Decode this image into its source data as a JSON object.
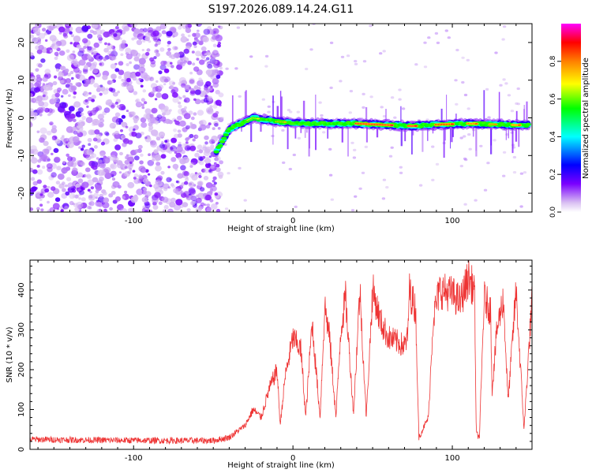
{
  "title": "S197.2026.089.14.24.G11",
  "colors": {
    "snr_line": "#ee3333",
    "frame": "#000000",
    "background": "#ffffff"
  },
  "chart_data": [
    {
      "type": "heatmap",
      "name": "spectrogram",
      "xlabel": "Height of straight line (km)",
      "ylabel": "Frequency (Hz)",
      "xlim": [
        -165,
        150
      ],
      "ylim": [
        -25,
        25
      ],
      "xticks": [
        -100,
        0,
        100
      ],
      "yticks": [
        -20,
        -10,
        0,
        10,
        20
      ],
      "colorbar": {
        "label": "Normalized spectral amplitude",
        "range": [
          0.0,
          1.0
        ],
        "ticks": [
          "0.0",
          "0.2",
          "0.4",
          "0.6",
          "0.8"
        ]
      },
      "ridge": {
        "description_points": [
          {
            "x": -48,
            "y": -9
          },
          {
            "x": -40,
            "y": -3
          },
          {
            "x": -25,
            "y": 0
          },
          {
            "x": -10,
            "y": -1
          },
          {
            "x": 10,
            "y": -1.5
          },
          {
            "x": 40,
            "y": -1.5
          },
          {
            "x": 75,
            "y": -2.2
          },
          {
            "x": 90,
            "y": -1.8
          },
          {
            "x": 110,
            "y": -1.5
          },
          {
            "x": 148,
            "y": -2
          }
        ],
        "peak_amplitude": 0.95
      }
    },
    {
      "type": "line",
      "name": "snr",
      "xlabel": "Height of straight line (km)",
      "ylabel": "SNR (10 * v/v)",
      "xlim": [
        -165,
        150
      ],
      "ylim": [
        0,
        475
      ],
      "xticks": [
        -100,
        0,
        100
      ],
      "yticks": [
        0,
        100,
        200,
        300,
        400
      ],
      "series": [
        {
          "name": "SNR",
          "color": "#ee3333",
          "profile": [
            {
              "x": -165,
              "y": 25
            },
            {
              "x": -120,
              "y": 23
            },
            {
              "x": -80,
              "y": 22
            },
            {
              "x": -50,
              "y": 22
            },
            {
              "x": -40,
              "y": 30
            },
            {
              "x": -30,
              "y": 60
            },
            {
              "x": -25,
              "y": 100
            },
            {
              "x": -20,
              "y": 80
            },
            {
              "x": -15,
              "y": 150
            },
            {
              "x": -10,
              "y": 200
            },
            {
              "x": -8,
              "y": 60
            },
            {
              "x": -5,
              "y": 180
            },
            {
              "x": 0,
              "y": 280
            },
            {
              "x": 5,
              "y": 250
            },
            {
              "x": 8,
              "y": 80
            },
            {
              "x": 12,
              "y": 320
            },
            {
              "x": 17,
              "y": 80
            },
            {
              "x": 20,
              "y": 360
            },
            {
              "x": 23,
              "y": 280
            },
            {
              "x": 27,
              "y": 80
            },
            {
              "x": 30,
              "y": 300
            },
            {
              "x": 33,
              "y": 380
            },
            {
              "x": 38,
              "y": 90
            },
            {
              "x": 42,
              "y": 400
            },
            {
              "x": 46,
              "y": 80
            },
            {
              "x": 50,
              "y": 400
            },
            {
              "x": 55,
              "y": 320
            },
            {
              "x": 60,
              "y": 280
            },
            {
              "x": 65,
              "y": 270
            },
            {
              "x": 70,
              "y": 260
            },
            {
              "x": 72,
              "y": 280
            },
            {
              "x": 73,
              "y": 400
            },
            {
              "x": 77,
              "y": 350
            },
            {
              "x": 79,
              "y": 30
            },
            {
              "x": 85,
              "y": 80
            },
            {
              "x": 88,
              "y": 330
            },
            {
              "x": 92,
              "y": 400
            },
            {
              "x": 100,
              "y": 390
            },
            {
              "x": 105,
              "y": 370
            },
            {
              "x": 110,
              "y": 430
            },
            {
              "x": 114,
              "y": 400
            },
            {
              "x": 115,
              "y": 40
            },
            {
              "x": 117,
              "y": 30
            },
            {
              "x": 120,
              "y": 380
            },
            {
              "x": 124,
              "y": 350
            },
            {
              "x": 125,
              "y": 150
            },
            {
              "x": 128,
              "y": 300
            },
            {
              "x": 132,
              "y": 380
            },
            {
              "x": 135,
              "y": 120
            },
            {
              "x": 140,
              "y": 400
            },
            {
              "x": 145,
              "y": 50
            },
            {
              "x": 150,
              "y": 380
            }
          ]
        }
      ]
    }
  ]
}
